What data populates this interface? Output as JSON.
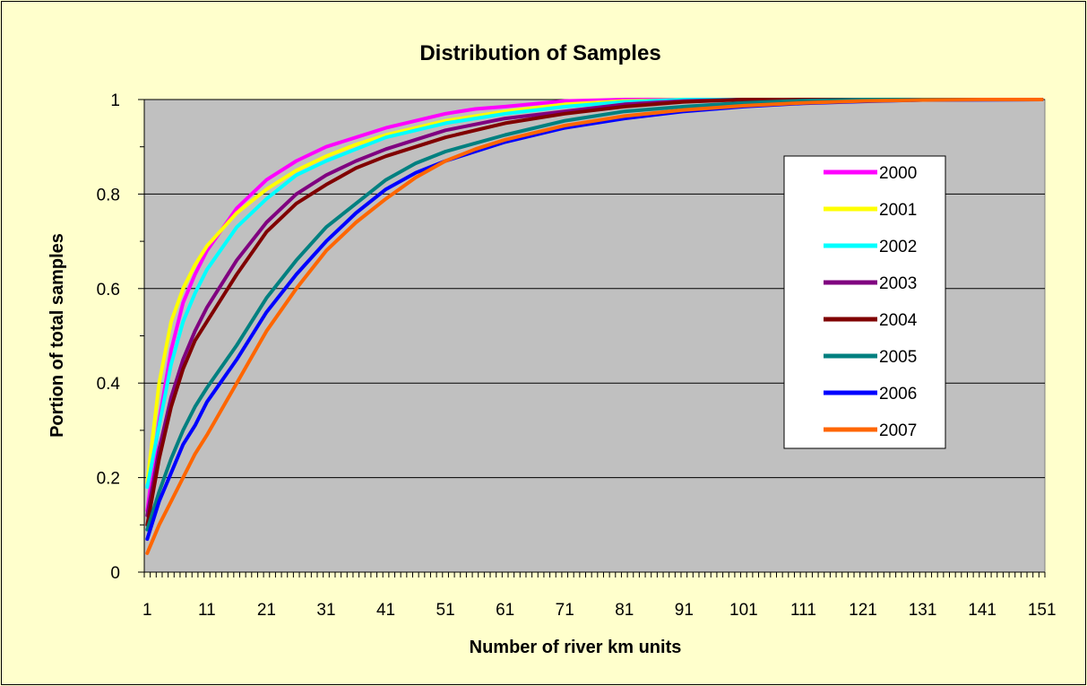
{
  "chart_data": {
    "type": "line",
    "title": "Distribution of Samples",
    "xlabel": "Number of river km units",
    "ylabel": "Portion of total samples",
    "xlim": [
      1,
      152
    ],
    "ylim": [
      0,
      1
    ],
    "y_ticks": [
      "0",
      "0.2",
      "0.4",
      "0.6",
      "0.8",
      "1"
    ],
    "x_tick_labels": [
      "1",
      "11",
      "21",
      "31",
      "41",
      "51",
      "61",
      "71",
      "81",
      "91",
      "101",
      "111",
      "121",
      "131",
      "141",
      "151"
    ],
    "grid": "horizontal major gridlines",
    "legend_position": "right",
    "plot_background": "#c0c0c0",
    "chart_background": "#ffffcc",
    "series": [
      {
        "name": "2000",
        "color": "#ff00ff",
        "x": [
          1,
          3,
          5,
          7,
          9,
          11,
          16,
          21,
          26,
          31,
          36,
          41,
          46,
          51,
          56,
          61,
          71,
          81
        ],
        "y": [
          0.13,
          0.32,
          0.47,
          0.57,
          0.63,
          0.68,
          0.77,
          0.83,
          0.87,
          0.9,
          0.92,
          0.94,
          0.955,
          0.97,
          0.98,
          0.985,
          0.997,
          1.0
        ]
      },
      {
        "name": "2001",
        "color": "#ffff00",
        "x": [
          1,
          3,
          5,
          7,
          9,
          11,
          16,
          21,
          26,
          31,
          36,
          41,
          46,
          51,
          61,
          71,
          81,
          91
        ],
        "y": [
          0.19,
          0.4,
          0.53,
          0.6,
          0.65,
          0.69,
          0.76,
          0.81,
          0.85,
          0.88,
          0.905,
          0.925,
          0.94,
          0.955,
          0.975,
          0.99,
          0.997,
          1.0
        ]
      },
      {
        "name": "2002",
        "color": "#00ffff",
        "x": [
          1,
          3,
          5,
          7,
          9,
          11,
          16,
          21,
          26,
          31,
          36,
          41,
          46,
          51,
          61,
          71,
          81,
          91
        ],
        "y": [
          0.18,
          0.31,
          0.44,
          0.53,
          0.59,
          0.64,
          0.73,
          0.79,
          0.84,
          0.87,
          0.895,
          0.92,
          0.935,
          0.95,
          0.97,
          0.985,
          0.995,
          1.0
        ]
      },
      {
        "name": "2003",
        "color": "#800080",
        "x": [
          1,
          3,
          5,
          7,
          9,
          11,
          16,
          21,
          26,
          31,
          36,
          41,
          46,
          51,
          61,
          71,
          81,
          91,
          101
        ],
        "y": [
          0.12,
          0.26,
          0.37,
          0.45,
          0.51,
          0.56,
          0.66,
          0.74,
          0.8,
          0.84,
          0.87,
          0.895,
          0.915,
          0.935,
          0.96,
          0.975,
          0.99,
          0.997,
          1.0
        ]
      },
      {
        "name": "2004",
        "color": "#800000",
        "x": [
          1,
          3,
          5,
          7,
          9,
          11,
          16,
          21,
          26,
          31,
          36,
          41,
          46,
          51,
          61,
          71,
          81,
          91,
          101
        ],
        "y": [
          0.1,
          0.24,
          0.35,
          0.43,
          0.49,
          0.53,
          0.63,
          0.72,
          0.78,
          0.82,
          0.855,
          0.88,
          0.9,
          0.92,
          0.95,
          0.97,
          0.985,
          0.995,
          1.0
        ]
      },
      {
        "name": "2005",
        "color": "#008080",
        "x": [
          1,
          3,
          5,
          7,
          9,
          11,
          16,
          21,
          26,
          31,
          36,
          41,
          46,
          51,
          61,
          71,
          81,
          91,
          101,
          111,
          121
        ],
        "y": [
          0.09,
          0.17,
          0.24,
          0.3,
          0.35,
          0.39,
          0.48,
          0.58,
          0.66,
          0.73,
          0.78,
          0.83,
          0.865,
          0.89,
          0.925,
          0.955,
          0.975,
          0.985,
          0.993,
          0.998,
          1.0
        ]
      },
      {
        "name": "2006",
        "color": "#0000ff",
        "x": [
          1,
          3,
          5,
          7,
          9,
          11,
          16,
          21,
          26,
          31,
          36,
          41,
          46,
          51,
          61,
          71,
          81,
          91,
          101,
          111,
          121,
          131,
          151
        ],
        "y": [
          0.07,
          0.15,
          0.21,
          0.27,
          0.31,
          0.36,
          0.45,
          0.55,
          0.63,
          0.7,
          0.76,
          0.81,
          0.845,
          0.87,
          0.91,
          0.94,
          0.96,
          0.975,
          0.985,
          0.992,
          0.996,
          0.999,
          1.0
        ]
      },
      {
        "name": "2007",
        "color": "#ff6600",
        "x": [
          1,
          3,
          5,
          7,
          9,
          11,
          16,
          21,
          26,
          31,
          36,
          41,
          46,
          51,
          56,
          61,
          71,
          81,
          91,
          101,
          111,
          121,
          131,
          141
        ],
        "y": [
          0.04,
          0.1,
          0.15,
          0.2,
          0.25,
          0.29,
          0.4,
          0.51,
          0.6,
          0.68,
          0.74,
          0.79,
          0.835,
          0.87,
          0.895,
          0.915,
          0.945,
          0.965,
          0.978,
          0.987,
          0.993,
          0.997,
          0.999,
          1.0
        ]
      }
    ]
  }
}
